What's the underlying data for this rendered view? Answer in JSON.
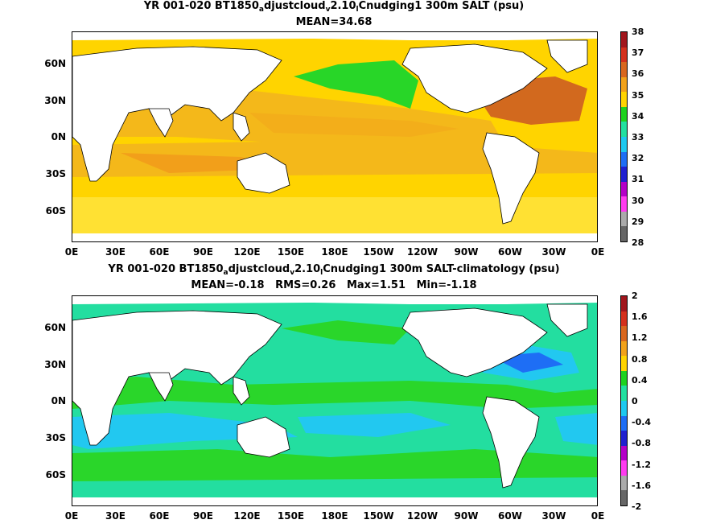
{
  "panels": [
    {
      "title_parts": [
        "YR 001-020 BT1850",
        "a",
        "djustcloud",
        "v",
        "2.10",
        "l",
        "Cnudging1 300m SALT (psu)"
      ],
      "subtitle": "MEAN=34.68",
      "colorbar_labels": [
        "38",
        "37",
        "36",
        "35",
        "34",
        "33",
        "32",
        "31",
        "30",
        "29",
        "28"
      ],
      "colorbar_colors": [
        "#a1161c",
        "#d4301c",
        "#d9671e",
        "#f2a21a",
        "#ffd400",
        "#1ed21e",
        "#22e0a0",
        "#1ec9f0",
        "#1e6ef5",
        "#2020d0",
        "#b400c8",
        "#ff3cf0",
        "#aaaaaa",
        "#666666"
      ],
      "field": {
        "ocean_base": "#ffd400",
        "high_salinity": "#f4a31a",
        "very_high": "#d2691e",
        "extreme": "#a0141c",
        "fresh": "#28d628"
      }
    },
    {
      "title_parts": [
        "YR 001-020 BT1850",
        "a",
        "djustcloud",
        "v",
        "2.10",
        "l",
        "Cnudging1 300m SALT-climatology (psu)"
      ],
      "subtitle": "MEAN=-0.18   RMS=0.26   Max=1.51   Min=-1.18",
      "colorbar_labels": [
        "2",
        "1.6",
        "1.2",
        "0.8",
        "0.4",
        "0",
        "-0.4",
        "-0.8",
        "-1.2",
        "-1.6",
        "-2"
      ],
      "colorbar_colors": [
        "#a1161c",
        "#d4301c",
        "#d9671e",
        "#f2a21a",
        "#ffd400",
        "#1ed21e",
        "#22e0a0",
        "#1ec9f0",
        "#1e6ef5",
        "#2020d0",
        "#b400c8",
        "#ff3cf0",
        "#aaaaaa",
        "#666666"
      ],
      "field": {
        "ocean_base": "#23dea0",
        "positive": "#2ad62a",
        "negative": "#22c8f0",
        "strong_negative": "#1e6ef5"
      }
    }
  ],
  "axes": {
    "x_ticks": [
      "0E",
      "30E",
      "60E",
      "90E",
      "120E",
      "150E",
      "180E",
      "150W",
      "120W",
      "90W",
      "60W",
      "30W",
      "0E"
    ],
    "y_ticks": [
      "60N",
      "30N",
      "0N",
      "30S",
      "60S"
    ]
  }
}
